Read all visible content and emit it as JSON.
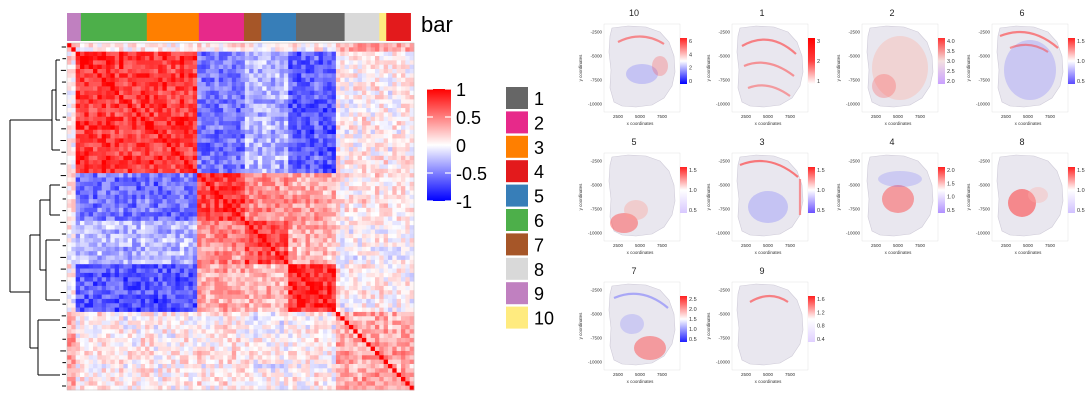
{
  "heatmap": {
    "annotation_label": "bar",
    "color_scale": {
      "ticks": [
        "1",
        "0.5",
        "0",
        "-0.5",
        "-1"
      ],
      "colors": {
        "high": "#ff0000",
        "mid": "#ffffff",
        "low": "#0000ff"
      }
    },
    "top_bar_segments": [
      {
        "cluster": "9",
        "frac": 0.04
      },
      {
        "cluster": "6",
        "frac": 0.19
      },
      {
        "cluster": "3",
        "frac": 0.15
      },
      {
        "cluster": "2",
        "frac": 0.13
      },
      {
        "cluster": "7",
        "frac": 0.05
      },
      {
        "cluster": "5",
        "frac": 0.1
      },
      {
        "cluster": "1",
        "frac": 0.14
      },
      {
        "cluster": "8",
        "frac": 0.1
      },
      {
        "cluster": "10",
        "frac": 0.02
      },
      {
        "cluster": "4",
        "frac": 0.07
      }
    ],
    "blocks": [
      {
        "clusters": "9,6,3",
        "from": 0.02,
        "to": 0.38
      },
      {
        "clusters": "2",
        "from": 0.38,
        "to": 0.51
      },
      {
        "clusters": "7,5",
        "from": 0.51,
        "to": 0.64
      },
      {
        "clusters": "1",
        "from": 0.64,
        "to": 0.78
      },
      {
        "clusters": "8,10,4",
        "from": 0.78,
        "to": 1.0
      }
    ],
    "legend": [
      {
        "label": "1",
        "color": "#666666"
      },
      {
        "label": "2",
        "color": "#e7298a"
      },
      {
        "label": "3",
        "color": "#ff7f00"
      },
      {
        "label": "4",
        "color": "#e31a1c"
      },
      {
        "label": "5",
        "color": "#377eb8"
      },
      {
        "label": "6",
        "color": "#4daf4a"
      },
      {
        "label": "7",
        "color": "#a65628"
      },
      {
        "label": "8",
        "color": "#d9d9d9"
      },
      {
        "label": "9",
        "color": "#c080c0"
      },
      {
        "label": "10",
        "color": "#ffeb7f"
      }
    ]
  },
  "spatial": {
    "x_label": "x coordinates",
    "y_label": "y coordinates",
    "x_ticks": [
      "2500",
      "5000",
      "7500"
    ],
    "y_ticks": [
      "-2500",
      "-5000",
      "-7500",
      "-10000"
    ],
    "panels": [
      {
        "title": "10",
        "scale_ticks": [
          "6",
          "4",
          "2",
          "0"
        ],
        "pattern": "mixed"
      },
      {
        "title": "1",
        "scale_ticks": [
          "3",
          "2",
          "1"
        ],
        "pattern": "stripes"
      },
      {
        "title": "2",
        "scale_ticks": [
          "4.0",
          "3.5",
          "3.0",
          "2.5",
          "2.0"
        ],
        "pattern": "diffuse"
      },
      {
        "title": "6",
        "scale_ticks": [
          "1.5",
          "1.0",
          "0.5"
        ],
        "pattern": "outer"
      },
      {
        "title": "5",
        "scale_ticks": [
          "1.5",
          "1.0",
          "0.5"
        ],
        "pattern": "lowerleft"
      },
      {
        "title": "3",
        "scale_ticks": [
          "1.5",
          "1.0",
          "0.5"
        ],
        "pattern": "cortex"
      },
      {
        "title": "4",
        "scale_ticks": [
          "2.0",
          "1.5",
          "1.0",
          "0.5"
        ],
        "pattern": "center"
      },
      {
        "title": "8",
        "scale_ticks": [
          "1.5",
          "1.0",
          "0.5"
        ],
        "pattern": "centerleft"
      },
      {
        "title": "7",
        "scale_ticks": [
          "2.5",
          "2.0",
          "1.5",
          "1.0",
          "0.5"
        ],
        "pattern": "bottomright"
      },
      {
        "title": "9",
        "scale_ticks": [
          "1.6",
          "1.2",
          "0.8",
          "0.4"
        ],
        "pattern": "arc"
      }
    ]
  }
}
